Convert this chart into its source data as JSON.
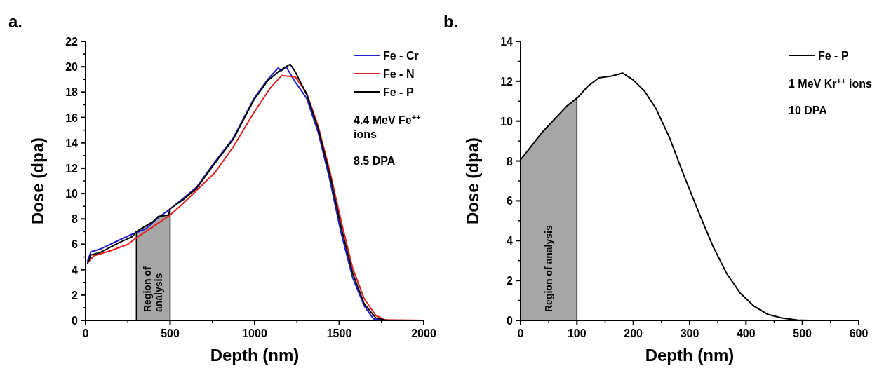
{
  "chart_data": [
    {
      "type": "line",
      "title": "a.",
      "xlabel": "Depth (nm)",
      "ylabel": "Dose (dpa)",
      "xlim": [
        0,
        2000
      ],
      "ylim": [
        0,
        22
      ],
      "xticks": [
        0,
        500,
        1000,
        1500,
        2000
      ],
      "yticks": [
        0,
        2,
        4,
        6,
        8,
        10,
        12,
        14,
        16,
        18,
        20,
        22
      ],
      "legend": "top right",
      "annotations": [
        "4.4 MeV Fe$^{++}$ ions",
        "8.5 DPA"
      ],
      "bands": [
        {
          "axis": "x",
          "from": 300,
          "to": 500,
          "label": "Region of analysis",
          "color": "#a6a6a6"
        }
      ],
      "series": [
        {
          "name": "Fe - Cr",
          "color": "#1f1fd0",
          "x": [
            11,
            31,
            86,
            194,
            276,
            357,
            425,
            500,
            575,
            656,
            765,
            874,
            996,
            1077,
            1139,
            1159,
            1186,
            1240,
            1308,
            1376,
            1444,
            1512,
            1580,
            1648,
            1702,
            1757,
            2000
          ],
          "values": [
            4.65,
            5.4,
            5.62,
            6.3,
            6.8,
            7.22,
            8.05,
            8.79,
            9.6,
            10.5,
            12.5,
            14.4,
            17.5,
            19.0,
            19.9,
            19.7,
            20.0,
            18.8,
            17.5,
            14.8,
            11.1,
            6.85,
            3.35,
            1.14,
            0.13,
            0,
            0
          ]
        },
        {
          "name": "Fe - N",
          "color": "#e02020",
          "x": [
            11,
            50,
            150,
            250,
            300,
            400,
            500,
            575,
            765,
            874,
            996,
            1091,
            1159,
            1240,
            1308,
            1376,
            1444,
            1512,
            1580,
            1648,
            1716,
            1770,
            2000
          ],
          "values": [
            4.55,
            5.1,
            5.5,
            6.0,
            6.5,
            7.4,
            8.3,
            9.2,
            11.65,
            13.7,
            16.4,
            18.3,
            19.3,
            19.2,
            17.9,
            15.3,
            11.8,
            7.8,
            4.1,
            1.7,
            0.4,
            0.04,
            0
          ]
        },
        {
          "name": "Fe - P",
          "color": "#000000",
          "x": [
            11,
            31,
            86,
            194,
            276,
            300,
            400,
            430,
            490,
            500,
            575,
            656,
            765,
            874,
            996,
            1077,
            1139,
            1186,
            1210,
            1240,
            1308,
            1376,
            1444,
            1512,
            1580,
            1648,
            1716,
            1780,
            2000
          ],
          "values": [
            4.45,
            5.15,
            5.35,
            6.1,
            6.6,
            7.0,
            7.8,
            8.2,
            8.3,
            8.8,
            9.5,
            10.4,
            12.4,
            14.3,
            17.4,
            18.9,
            19.6,
            20.0,
            20.2,
            19.6,
            17.8,
            15.1,
            11.5,
            7.3,
            3.7,
            1.3,
            0.2,
            0,
            0
          ]
        }
      ]
    },
    {
      "type": "line",
      "title": "b.",
      "xlabel": "Depth (nm)",
      "ylabel": "Dose (dpa)",
      "xlim": [
        0,
        600
      ],
      "ylim": [
        0,
        14
      ],
      "xticks": [
        0,
        100,
        200,
        300,
        400,
        500,
        600
      ],
      "yticks": [
        0,
        2,
        4,
        6,
        8,
        10,
        12,
        14
      ],
      "legend": "top right",
      "annotations": [
        "1 MeV Kr$^{++}$ ions",
        "10 DPA"
      ],
      "bands": [
        {
          "axis": "x",
          "from": 0,
          "to": 100,
          "label": "Region of analysis",
          "color": "#a6a6a6"
        }
      ],
      "series": [
        {
          "name": "Fe - P",
          "color": "#000000",
          "x": [
            0,
            37.7,
            82,
            102,
            119,
            139,
            161,
            181,
            200,
            220,
            240,
            264,
            289,
            317,
            341,
            366,
            390,
            414,
            438,
            463,
            491,
            511,
            540
          ],
          "values": [
            8.06,
            9.42,
            10.75,
            11.2,
            11.74,
            12.17,
            12.26,
            12.41,
            12.06,
            11.5,
            10.64,
            9.19,
            7.33,
            5.36,
            3.74,
            2.34,
            1.36,
            0.72,
            0.31,
            0.12,
            0.02,
            0,
            0
          ]
        }
      ]
    }
  ]
}
